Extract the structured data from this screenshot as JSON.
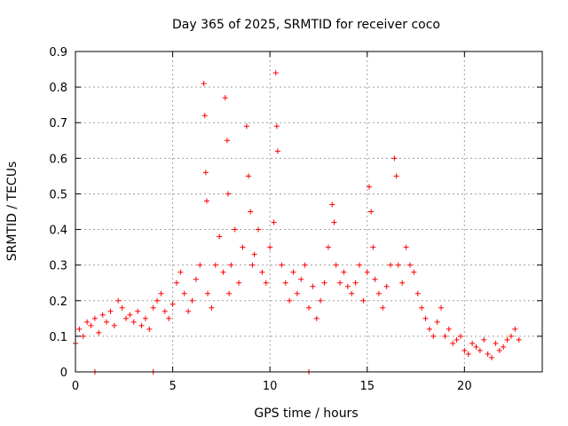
{
  "chart_data": {
    "type": "scatter",
    "title": "Day 365 of 2025, SRMTID for receiver coco",
    "xlabel": "GPS time / hours",
    "ylabel": "SRMTID / TECUs",
    "xlim": [
      0,
      24
    ],
    "ylim": [
      0,
      0.9
    ],
    "xticks": [
      0,
      5,
      10,
      15,
      20
    ],
    "xtick_labels": [
      "0",
      "5",
      "10",
      "15",
      "20"
    ],
    "yticks": [
      0,
      0.1,
      0.2,
      0.3,
      0.4,
      0.5,
      0.6,
      0.7,
      0.8,
      0.9
    ],
    "ytick_labels": [
      "0",
      "0.1",
      "0.2",
      "0.3",
      "0.4",
      "0.5",
      "0.6",
      "0.7",
      "0.8",
      "0.9"
    ],
    "grid": true,
    "marker": "plus",
    "series": [
      {
        "name": "SRMTID",
        "color": "#ff0000",
        "x": [
          0.0,
          0.2,
          0.4,
          0.6,
          0.8,
          1.0,
          1.2,
          1.4,
          1.6,
          1.8,
          2.0,
          2.2,
          2.4,
          2.6,
          2.8,
          3.0,
          3.2,
          3.4,
          3.6,
          3.8,
          4.0,
          4.2,
          4.4,
          4.6,
          4.8,
          5.0,
          5.2,
          5.4,
          5.6,
          5.8,
          6.0,
          6.2,
          6.4,
          6.6,
          6.65,
          6.7,
          6.75,
          6.8,
          7.0,
          7.2,
          7.4,
          7.6,
          7.7,
          7.8,
          7.85,
          7.9,
          8.0,
          8.2,
          8.4,
          8.6,
          8.8,
          8.9,
          9.0,
          9.1,
          9.2,
          9.4,
          9.6,
          9.8,
          10.0,
          10.2,
          10.3,
          10.35,
          10.4,
          10.6,
          10.8,
          11.0,
          11.2,
          11.4,
          11.6,
          11.8,
          12.0,
          12.2,
          12.4,
          12.6,
          12.8,
          13.0,
          13.2,
          13.3,
          13.4,
          13.6,
          13.8,
          14.0,
          14.2,
          14.4,
          14.6,
          14.8,
          15.0,
          15.1,
          15.2,
          15.3,
          15.4,
          15.6,
          15.8,
          16.0,
          16.2,
          16.4,
          16.5,
          16.6,
          16.8,
          17.0,
          17.2,
          17.4,
          17.6,
          17.8,
          18.0,
          18.2,
          18.4,
          18.6,
          18.8,
          19.0,
          19.2,
          19.4,
          19.6,
          19.8,
          20.0,
          20.2,
          20.4,
          20.6,
          20.8,
          21.0,
          21.2,
          21.4,
          21.6,
          21.8,
          22.0,
          22.2,
          22.4,
          22.6,
          22.8,
          1.0,
          4.0,
          12.0
        ],
        "y": [
          0.08,
          0.12,
          0.1,
          0.14,
          0.13,
          0.15,
          0.11,
          0.16,
          0.14,
          0.17,
          0.13,
          0.2,
          0.18,
          0.15,
          0.16,
          0.14,
          0.17,
          0.13,
          0.15,
          0.12,
          0.18,
          0.2,
          0.22,
          0.17,
          0.15,
          0.19,
          0.25,
          0.28,
          0.22,
          0.17,
          0.2,
          0.26,
          0.3,
          0.81,
          0.72,
          0.56,
          0.48,
          0.22,
          0.18,
          0.3,
          0.38,
          0.28,
          0.77,
          0.65,
          0.5,
          0.22,
          0.3,
          0.4,
          0.25,
          0.35,
          0.69,
          0.55,
          0.45,
          0.3,
          0.33,
          0.4,
          0.28,
          0.25,
          0.35,
          0.42,
          0.84,
          0.69,
          0.62,
          0.3,
          0.25,
          0.2,
          0.28,
          0.22,
          0.26,
          0.3,
          0.18,
          0.24,
          0.15,
          0.2,
          0.25,
          0.35,
          0.47,
          0.42,
          0.3,
          0.25,
          0.28,
          0.24,
          0.22,
          0.25,
          0.3,
          0.2,
          0.28,
          0.52,
          0.45,
          0.35,
          0.26,
          0.22,
          0.18,
          0.24,
          0.3,
          0.6,
          0.55,
          0.3,
          0.25,
          0.35,
          0.3,
          0.28,
          0.22,
          0.18,
          0.15,
          0.12,
          0.1,
          0.14,
          0.18,
          0.1,
          0.12,
          0.08,
          0.09,
          0.1,
          0.06,
          0.05,
          0.08,
          0.07,
          0.06,
          0.09,
          0.05,
          0.04,
          0.08,
          0.06,
          0.07,
          0.09,
          0.1,
          0.12,
          0.09,
          0.0,
          0.0,
          0.0
        ]
      }
    ]
  }
}
